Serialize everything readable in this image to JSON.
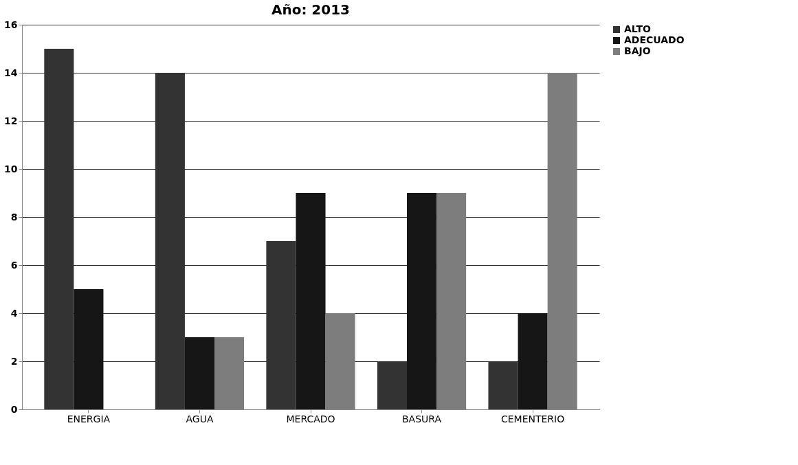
{
  "chart_data": {
    "type": "bar",
    "title": "Año: 2013",
    "categories": [
      "ENERGIA",
      "AGUA",
      "MERCADO",
      "BASURA",
      "CEMENTERIO"
    ],
    "series": [
      {
        "name": "ALTO",
        "color": "#333333",
        "values": [
          15,
          14,
          7,
          2,
          2
        ]
      },
      {
        "name": "ADECUADO",
        "color": "#161616",
        "values": [
          5,
          3,
          9,
          9,
          4
        ]
      },
      {
        "name": "BAJO",
        "color": "#7d7d7d",
        "values": [
          0,
          3,
          4,
          9,
          14
        ]
      }
    ],
    "ylim": [
      0,
      16
    ],
    "yticks": [
      0,
      2,
      4,
      6,
      8,
      10,
      12,
      14,
      16
    ],
    "grid": "y",
    "legend": "right"
  }
}
